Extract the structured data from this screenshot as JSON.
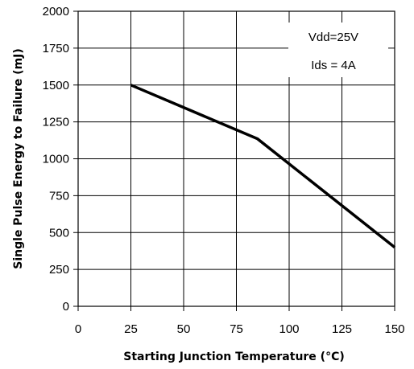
{
  "chart_data": {
    "type": "line",
    "title": "",
    "xlabel": "Starting Junction Temperature (°C)",
    "ylabel": "Single Pulse Energy to Failure (mJ)",
    "xlim": [
      0,
      150
    ],
    "ylim": [
      0,
      2000
    ],
    "xticks": [
      0,
      25,
      50,
      75,
      100,
      125,
      150
    ],
    "yticks": [
      0,
      250,
      500,
      750,
      1000,
      1250,
      1500,
      1750,
      2000
    ],
    "grid": true,
    "series": [
      {
        "x": [
          25,
          85,
          150
        ],
        "y": [
          1500,
          1135,
          400
        ]
      }
    ],
    "annotations": [
      "Vdd=25V",
      "Ids = 4A"
    ],
    "colors": {
      "line": "#000000",
      "grid": "#000000"
    }
  }
}
